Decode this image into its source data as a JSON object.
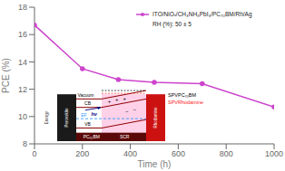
{
  "chart_data": {
    "type": "line",
    "xlabel": "Time (h)",
    "ylabel": "PCE (%)",
    "x": [
      0,
      200,
      350,
      500,
      700,
      1000
    ],
    "series": [
      {
        "name": "ITO/NiOₓ/CH₃NH₃PbI₃/PC₇₀BM/Rh/Ag",
        "color": "#cc44cc",
        "marker": "circle",
        "values": [
          16.7,
          13.5,
          12.7,
          12.5,
          12.4,
          10.7
        ]
      }
    ],
    "xlim": [
      0,
      1000
    ],
    "ylim": [
      8,
      18
    ],
    "xticks": [
      0,
      200,
      400,
      600,
      800,
      1000
    ],
    "yticks": [
      8,
      10,
      12,
      14,
      16,
      18
    ],
    "legend": "upper right",
    "annotations": [
      "RH (%): 50 ± 5",
      "SPVPC₇₀BM",
      "SPVRhodamine",
      "Vacuum",
      "CB",
      "EF",
      "VB",
      "hν",
      "+",
      "+",
      "+",
      "−",
      "−",
      "PC₇₀BM",
      "SCR",
      "Rhodamine",
      "Energy",
      "Perovskite"
    ]
  }
}
